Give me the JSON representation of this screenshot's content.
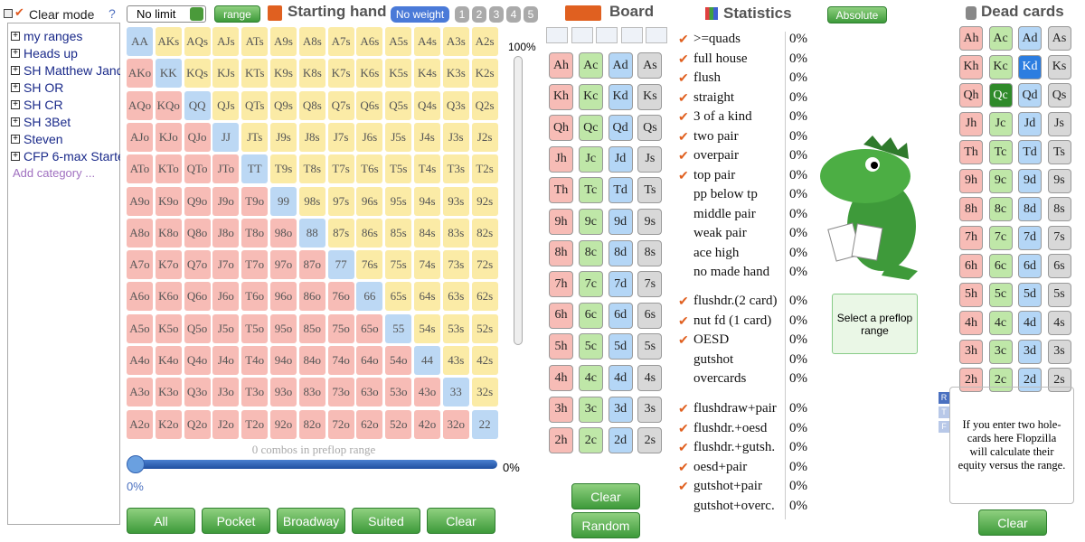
{
  "left_panel": {
    "title": "Clear mode",
    "help": "?",
    "ranges": [
      "my ranges",
      "Heads up",
      "SH Matthew Jand",
      "SH OR",
      "SH CR",
      "SH 3Bet",
      "Steven",
      "CFP 6-max Starte"
    ],
    "add_category": "Add category ..."
  },
  "toolbar": {
    "game": "No limit",
    "range_button": "range",
    "title": "Starting hand",
    "weight": "No weight",
    "weights": [
      "1",
      "2",
      "3",
      "4",
      "5"
    ]
  },
  "hand_grid": {
    "rows": [
      [
        "AA",
        "AKs",
        "AQs",
        "AJs",
        "ATs",
        "A9s",
        "A8s",
        "A7s",
        "A6s",
        "A5s",
        "A4s",
        "A3s",
        "A2s"
      ],
      [
        "AKo",
        "KK",
        "KQs",
        "KJs",
        "KTs",
        "K9s",
        "K8s",
        "K7s",
        "K6s",
        "K5s",
        "K4s",
        "K3s",
        "K2s"
      ],
      [
        "AQo",
        "KQo",
        "QQ",
        "QJs",
        "QTs",
        "Q9s",
        "Q8s",
        "Q7s",
        "Q6s",
        "Q5s",
        "Q4s",
        "Q3s",
        "Q2s"
      ],
      [
        "AJo",
        "KJo",
        "QJo",
        "JJ",
        "JTs",
        "J9s",
        "J8s",
        "J7s",
        "J6s",
        "J5s",
        "J4s",
        "J3s",
        "J2s"
      ],
      [
        "ATo",
        "KTo",
        "QTo",
        "JTo",
        "TT",
        "T9s",
        "T8s",
        "T7s",
        "T6s",
        "T5s",
        "T4s",
        "T3s",
        "T2s"
      ],
      [
        "A9o",
        "K9o",
        "Q9o",
        "J9o",
        "T9o",
        "99",
        "98s",
        "97s",
        "96s",
        "95s",
        "94s",
        "93s",
        "92s"
      ],
      [
        "A8o",
        "K8o",
        "Q8o",
        "J8o",
        "T8o",
        "98o",
        "88",
        "87s",
        "86s",
        "85s",
        "84s",
        "83s",
        "82s"
      ],
      [
        "A7o",
        "K7o",
        "Q7o",
        "J7o",
        "T7o",
        "97o",
        "87o",
        "77",
        "76s",
        "75s",
        "74s",
        "73s",
        "72s"
      ],
      [
        "A6o",
        "K6o",
        "Q6o",
        "J6o",
        "T6o",
        "96o",
        "86o",
        "76o",
        "66",
        "65s",
        "64s",
        "63s",
        "62s"
      ],
      [
        "A5o",
        "K5o",
        "Q5o",
        "J5o",
        "T5o",
        "95o",
        "85o",
        "75o",
        "65o",
        "55",
        "54s",
        "53s",
        "52s"
      ],
      [
        "A4o",
        "K4o",
        "Q4o",
        "J4o",
        "T4o",
        "94o",
        "84o",
        "74o",
        "64o",
        "54o",
        "44",
        "43s",
        "42s"
      ],
      [
        "A3o",
        "K3o",
        "Q3o",
        "J3o",
        "T3o",
        "93o",
        "83o",
        "73o",
        "63o",
        "53o",
        "43o",
        "33",
        "32s"
      ],
      [
        "A2o",
        "K2o",
        "Q2o",
        "J2o",
        "T2o",
        "92o",
        "82o",
        "72o",
        "62o",
        "52o",
        "42o",
        "32o",
        "22"
      ]
    ],
    "slider_top": "100%",
    "combos": "0 combos in preflop range",
    "slider_right": "0%",
    "slider_bottom": "0%",
    "buttons": [
      "All",
      "Pocket",
      "Broadway",
      "Suited",
      "Clear"
    ]
  },
  "board": {
    "title": "Board",
    "cards": [
      [
        "Ah",
        "Ac",
        "Ad",
        "As"
      ],
      [
        "Kh",
        "Kc",
        "Kd",
        "Ks"
      ],
      [
        "Qh",
        "Qc",
        "Qd",
        "Qs"
      ],
      [
        "Jh",
        "Jc",
        "Jd",
        "Js"
      ],
      [
        "Th",
        "Tc",
        "Td",
        "Ts"
      ],
      [
        "9h",
        "9c",
        "9d",
        "9s"
      ],
      [
        "8h",
        "8c",
        "8d",
        "8s"
      ],
      [
        "7h",
        "7c",
        "7d",
        "7s"
      ],
      [
        "6h",
        "6c",
        "6d",
        "6s"
      ],
      [
        "5h",
        "5c",
        "5d",
        "5s"
      ],
      [
        "4h",
        "4c",
        "4d",
        "4s"
      ],
      [
        "3h",
        "3c",
        "3d",
        "3s"
      ],
      [
        "2h",
        "2c",
        "2d",
        "2s"
      ]
    ],
    "buttons": [
      "Clear",
      "Random"
    ]
  },
  "statistics": {
    "title": "Statistics",
    "mode": "Absolute",
    "groups": [
      [
        {
          "label": ">=quads",
          "value": "0%",
          "checked": true
        },
        {
          "label": "full house",
          "value": "0%",
          "checked": true
        },
        {
          "label": "flush",
          "value": "0%",
          "checked": true
        },
        {
          "label": "straight",
          "value": "0%",
          "checked": true
        },
        {
          "label": "3 of a kind",
          "value": "0%",
          "checked": true
        },
        {
          "label": "two pair",
          "value": "0%",
          "checked": true
        },
        {
          "label": "overpair",
          "value": "0%",
          "checked": true
        },
        {
          "label": "top pair",
          "value": "0%",
          "checked": true
        },
        {
          "label": "pp below tp",
          "value": "0%",
          "checked": false
        },
        {
          "label": "middle pair",
          "value": "0%",
          "checked": false
        },
        {
          "label": "weak pair",
          "value": "0%",
          "checked": false
        },
        {
          "label": "ace high",
          "value": "0%",
          "checked": false
        },
        {
          "label": "no made hand",
          "value": "0%",
          "checked": false
        }
      ],
      [
        {
          "label": "flushdr.(2 card)",
          "value": "0%",
          "checked": true
        },
        {
          "label": "nut fd (1 card)",
          "value": "0%",
          "checked": true
        },
        {
          "label": "OESD",
          "value": "0%",
          "checked": true
        },
        {
          "label": "gutshot",
          "value": "0%",
          "checked": false
        },
        {
          "label": "overcards",
          "value": "0%",
          "checked": false
        }
      ],
      [
        {
          "label": "flushdraw+pair",
          "value": "0%",
          "checked": true
        },
        {
          "label": "flushdr.+oesd",
          "value": "0%",
          "checked": true
        },
        {
          "label": "flushdr.+gutsh.",
          "value": "0%",
          "checked": true
        },
        {
          "label": "oesd+pair",
          "value": "0%",
          "checked": true
        },
        {
          "label": "gutshot+pair",
          "value": "0%",
          "checked": true
        },
        {
          "label": "gutshot+overc.",
          "value": "0%",
          "checked": false
        }
      ]
    ],
    "prompt": "Select a preflop range"
  },
  "dead_cards": {
    "title": "Dead cards",
    "selected": "Kd",
    "hovered": "Qc",
    "cards": [
      [
        "Ah",
        "Ac",
        "Ad",
        "As"
      ],
      [
        "Kh",
        "Kc",
        "Kd",
        "Ks"
      ],
      [
        "Qh",
        "Qc",
        "Qd",
        "Qs"
      ],
      [
        "Jh",
        "Jc",
        "Jd",
        "Js"
      ],
      [
        "Th",
        "Tc",
        "Td",
        "Ts"
      ],
      [
        "9h",
        "9c",
        "9d",
        "9s"
      ],
      [
        "8h",
        "8c",
        "8d",
        "8s"
      ],
      [
        "7h",
        "7c",
        "7d",
        "7s"
      ],
      [
        "6h",
        "6c",
        "6d",
        "6s"
      ],
      [
        "5h",
        "5c",
        "5d",
        "5s"
      ],
      [
        "4h",
        "4c",
        "4d",
        "4s"
      ],
      [
        "3h",
        "3c",
        "3d",
        "3s"
      ],
      [
        "2h",
        "2c",
        "2d",
        "2s"
      ]
    ],
    "icons": [
      "R",
      "T",
      "F"
    ],
    "info": "If you enter two hole-cards here Flopzilla will calculate their equity versus the range.",
    "button": "Clear"
  }
}
